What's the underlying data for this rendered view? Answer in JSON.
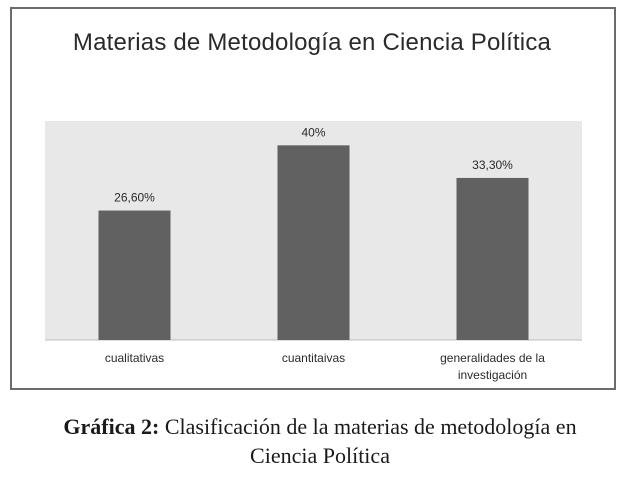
{
  "chart_data": {
    "type": "bar",
    "title": "Materias de Metodología en Ciencia Política",
    "categories": [
      "cualitativas",
      "cuantitaivas",
      "generalidades de la investigación"
    ],
    "values": [
      26.6,
      40,
      33.3
    ],
    "data_labels": [
      "26,60%",
      "40%",
      "33,30%"
    ],
    "ylim": [
      0,
      45
    ],
    "bar_color": "#616161",
    "plot_background": "#e8e8e8",
    "grid": false,
    "legend": "none"
  },
  "caption": {
    "label": "Gráfica 2:",
    "text": "Clasificación de la materias de metodología en Ciencia Política"
  }
}
